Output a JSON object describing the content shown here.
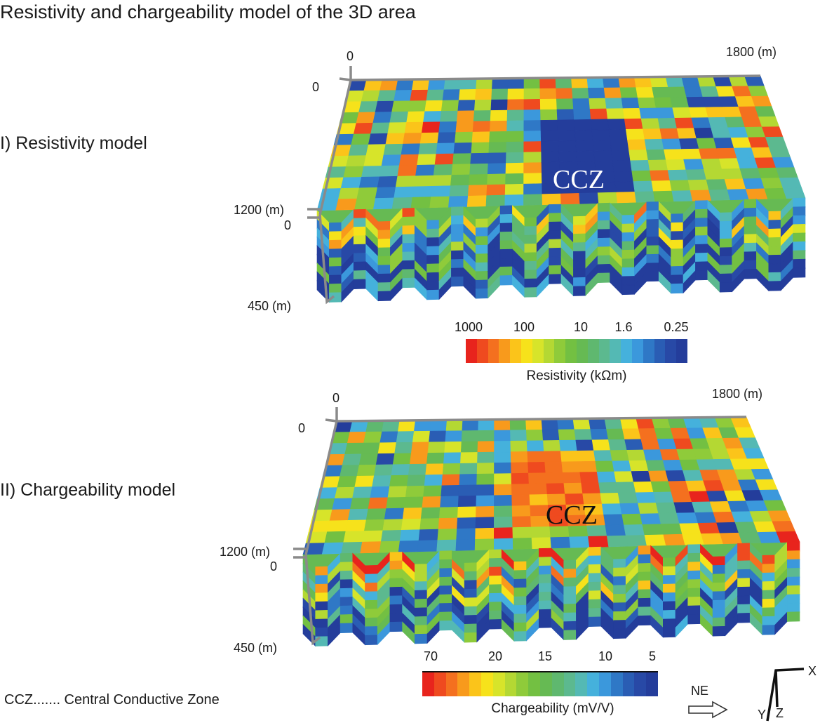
{
  "title": "Resistivity and chargeability model of the 3D area",
  "panels": [
    {
      "label": "I)  Resistivity model",
      "axis": {
        "x_start": "0",
        "x_end": "1800 (m)",
        "y_top": "0",
        "y_end": "1200 (m)",
        "z_top": "0",
        "z_end": "450 (m)"
      },
      "zone_label": "CCZ",
      "zone_color": "#ffffff",
      "colorbar": {
        "ticks": [
          "1000",
          "100",
          "10",
          "1.6",
          "0.25"
        ],
        "label": "Resistivity (kΩm)",
        "colors": [
          "#e8241d",
          "#ef4a1f",
          "#f4701f",
          "#f89a1c",
          "#fbc41a",
          "#f6e21b",
          "#d7e42a",
          "#b4d833",
          "#8fcb3a",
          "#73c042",
          "#66ba53",
          "#5fb86f",
          "#5cb98f",
          "#54b9b4",
          "#45b1dc",
          "#3b98dc",
          "#2f78c6",
          "#2a5db4",
          "#2849a6",
          "#243d9b"
        ]
      }
    },
    {
      "label": "II) Chargeability model",
      "axis": {
        "x_start": "0",
        "x_end": "1800 (m)",
        "y_top": "0",
        "y_end": "1200 (m)",
        "z_top": "0",
        "z_end": "450 (m)"
      },
      "zone_label": "CCZ",
      "zone_color": "#111111",
      "colorbar": {
        "ticks": [
          "70",
          "20",
          "15",
          "10",
          "5"
        ],
        "label": "Chargeability (mV/V)",
        "colors": [
          "#e8241d",
          "#ef4a1f",
          "#f4701f",
          "#f89a1c",
          "#fbc41a",
          "#f6e21b",
          "#d7e42a",
          "#b4d833",
          "#8fcb3a",
          "#73c042",
          "#66ba53",
          "#5fb86f",
          "#5cb98f",
          "#54b9b4",
          "#45b1dc",
          "#3b98dc",
          "#2f78c6",
          "#2a5db4",
          "#2849a6",
          "#243d9b"
        ]
      }
    }
  ],
  "legend": "CCZ.......  Central Conductive Zone",
  "orientation": {
    "direction": "NE",
    "axes": [
      "X",
      "Y",
      "Z"
    ]
  },
  "icons": [
    "arrow-right-icon",
    "axes-triad-icon"
  ]
}
